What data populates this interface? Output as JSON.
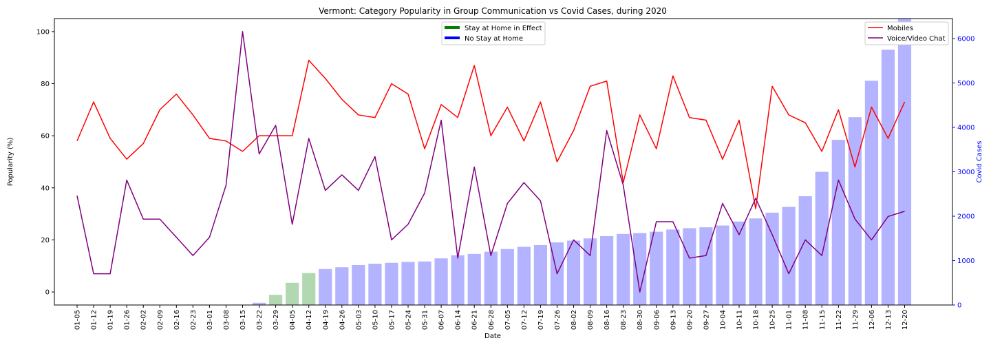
{
  "chart_data": {
    "type": "bar+line",
    "title": "Vermont: Category Popularity in Group Communication vs Covid Cases, during 2020",
    "xlabel": "Date",
    "ylabel_left": "Popularity (%)",
    "ylabel_right": "Covid Cases",
    "ylim_left": [
      -5,
      105
    ],
    "ylim_right": [
      0,
      6450
    ],
    "yticks_left": [
      0,
      20,
      40,
      60,
      80,
      100
    ],
    "yticks_right": [
      0,
      1000,
      2000,
      3000,
      4000,
      5000,
      6000
    ],
    "grid": false,
    "categories": [
      "01-05",
      "01-12",
      "01-19",
      "01-26",
      "02-02",
      "02-09",
      "02-16",
      "02-23",
      "03-01",
      "03-08",
      "03-15",
      "03-22",
      "03-29",
      "04-05",
      "04-12",
      "04-19",
      "04-26",
      "05-03",
      "05-10",
      "05-17",
      "05-24",
      "05-31",
      "06-07",
      "06-14",
      "06-21",
      "06-28",
      "07-05",
      "07-12",
      "07-19",
      "07-26",
      "08-02",
      "08-09",
      "08-16",
      "08-23",
      "08-30",
      "09-06",
      "09-13",
      "09-20",
      "09-27",
      "10-04",
      "10-11",
      "10-18",
      "10-25",
      "11-01",
      "11-08",
      "11-15",
      "11-22",
      "11-29",
      "12-06",
      "12-13",
      "12-20"
    ],
    "series": [
      {
        "name": "Mobiles",
        "color": "#ff0000",
        "axis": "left",
        "values": [
          58,
          73,
          59,
          51,
          57,
          70,
          76,
          68,
          59,
          58,
          54,
          60,
          60,
          60,
          89,
          82,
          74,
          68,
          67,
          80,
          76,
          55,
          72,
          67,
          87,
          60,
          71,
          58,
          73,
          50,
          62,
          79,
          81,
          42,
          68,
          55,
          83,
          67,
          66,
          51,
          66,
          32,
          79,
          68,
          65,
          54,
          70,
          48,
          71,
          59,
          73
        ]
      },
      {
        "name": "Voice/Video Chat",
        "color": "#800080",
        "axis": "left",
        "values": [
          37,
          7,
          7,
          43,
          28,
          28,
          21,
          14,
          21,
          41,
          100,
          53,
          64,
          26,
          59,
          39,
          45,
          39,
          52,
          20,
          26,
          38,
          66,
          13,
          48,
          14,
          34,
          42,
          35,
          7,
          20,
          14,
          62,
          41,
          0,
          27,
          27,
          13,
          14,
          34,
          22,
          36,
          22,
          7,
          20,
          14,
          43,
          28,
          20,
          29,
          31
        ]
      },
      {
        "name": "Covid Cases",
        "axis": "right",
        "values": [
          0,
          0,
          0,
          0,
          0,
          0,
          0,
          0,
          0,
          0,
          0,
          50,
          230,
          500,
          720,
          810,
          850,
          900,
          930,
          950,
          970,
          980,
          1050,
          1120,
          1150,
          1200,
          1260,
          1310,
          1350,
          1410,
          1450,
          1500,
          1550,
          1600,
          1620,
          1650,
          1700,
          1730,
          1750,
          1790,
          1880,
          1950,
          2080,
          2210,
          2450,
          3000,
          3720,
          4230,
          5050,
          5750,
          6450
        ],
        "bar_colors": [
          "#b3b3ff",
          "#b3b3ff",
          "#b3b3ff",
          "#b3b3ff",
          "#b3b3ff",
          "#b3b3ff",
          "#b3b3ff",
          "#b3b3ff",
          "#b3b3ff",
          "#b3b3ff",
          "#b3b3ff",
          "#b3b3ff",
          "#b2d8b2",
          "#b2d8b2",
          "#b2d8b2",
          "#b3b3ff",
          "#b3b3ff",
          "#b3b3ff",
          "#b3b3ff",
          "#b3b3ff",
          "#b3b3ff",
          "#b3b3ff",
          "#b3b3ff",
          "#b3b3ff",
          "#b3b3ff",
          "#b3b3ff",
          "#b3b3ff",
          "#b3b3ff",
          "#b3b3ff",
          "#b3b3ff",
          "#b3b3ff",
          "#b3b3ff",
          "#b3b3ff",
          "#b3b3ff",
          "#b3b3ff",
          "#b3b3ff",
          "#b3b3ff",
          "#b3b3ff",
          "#b3b3ff",
          "#b3b3ff",
          "#b3b3ff",
          "#b3b3ff",
          "#b3b3ff",
          "#b3b3ff",
          "#b3b3ff",
          "#b3b3ff",
          "#b3b3ff",
          "#b3b3ff",
          "#b3b3ff",
          "#b3b3ff",
          "#b3b3ff"
        ]
      }
    ],
    "legends": [
      {
        "placement": "top-center",
        "entries": [
          {
            "label": "Stay at Home in Effect",
            "color": "#008000"
          },
          {
            "label": "No Stay at Home",
            "color": "#0000ff"
          }
        ]
      },
      {
        "placement": "top-right",
        "entries": [
          {
            "label": "Mobiles",
            "color": "#ff0000"
          },
          {
            "label": "Voice/Video Chat",
            "color": "#800080"
          }
        ]
      }
    ],
    "right_axis_color": "#0000ff"
  }
}
